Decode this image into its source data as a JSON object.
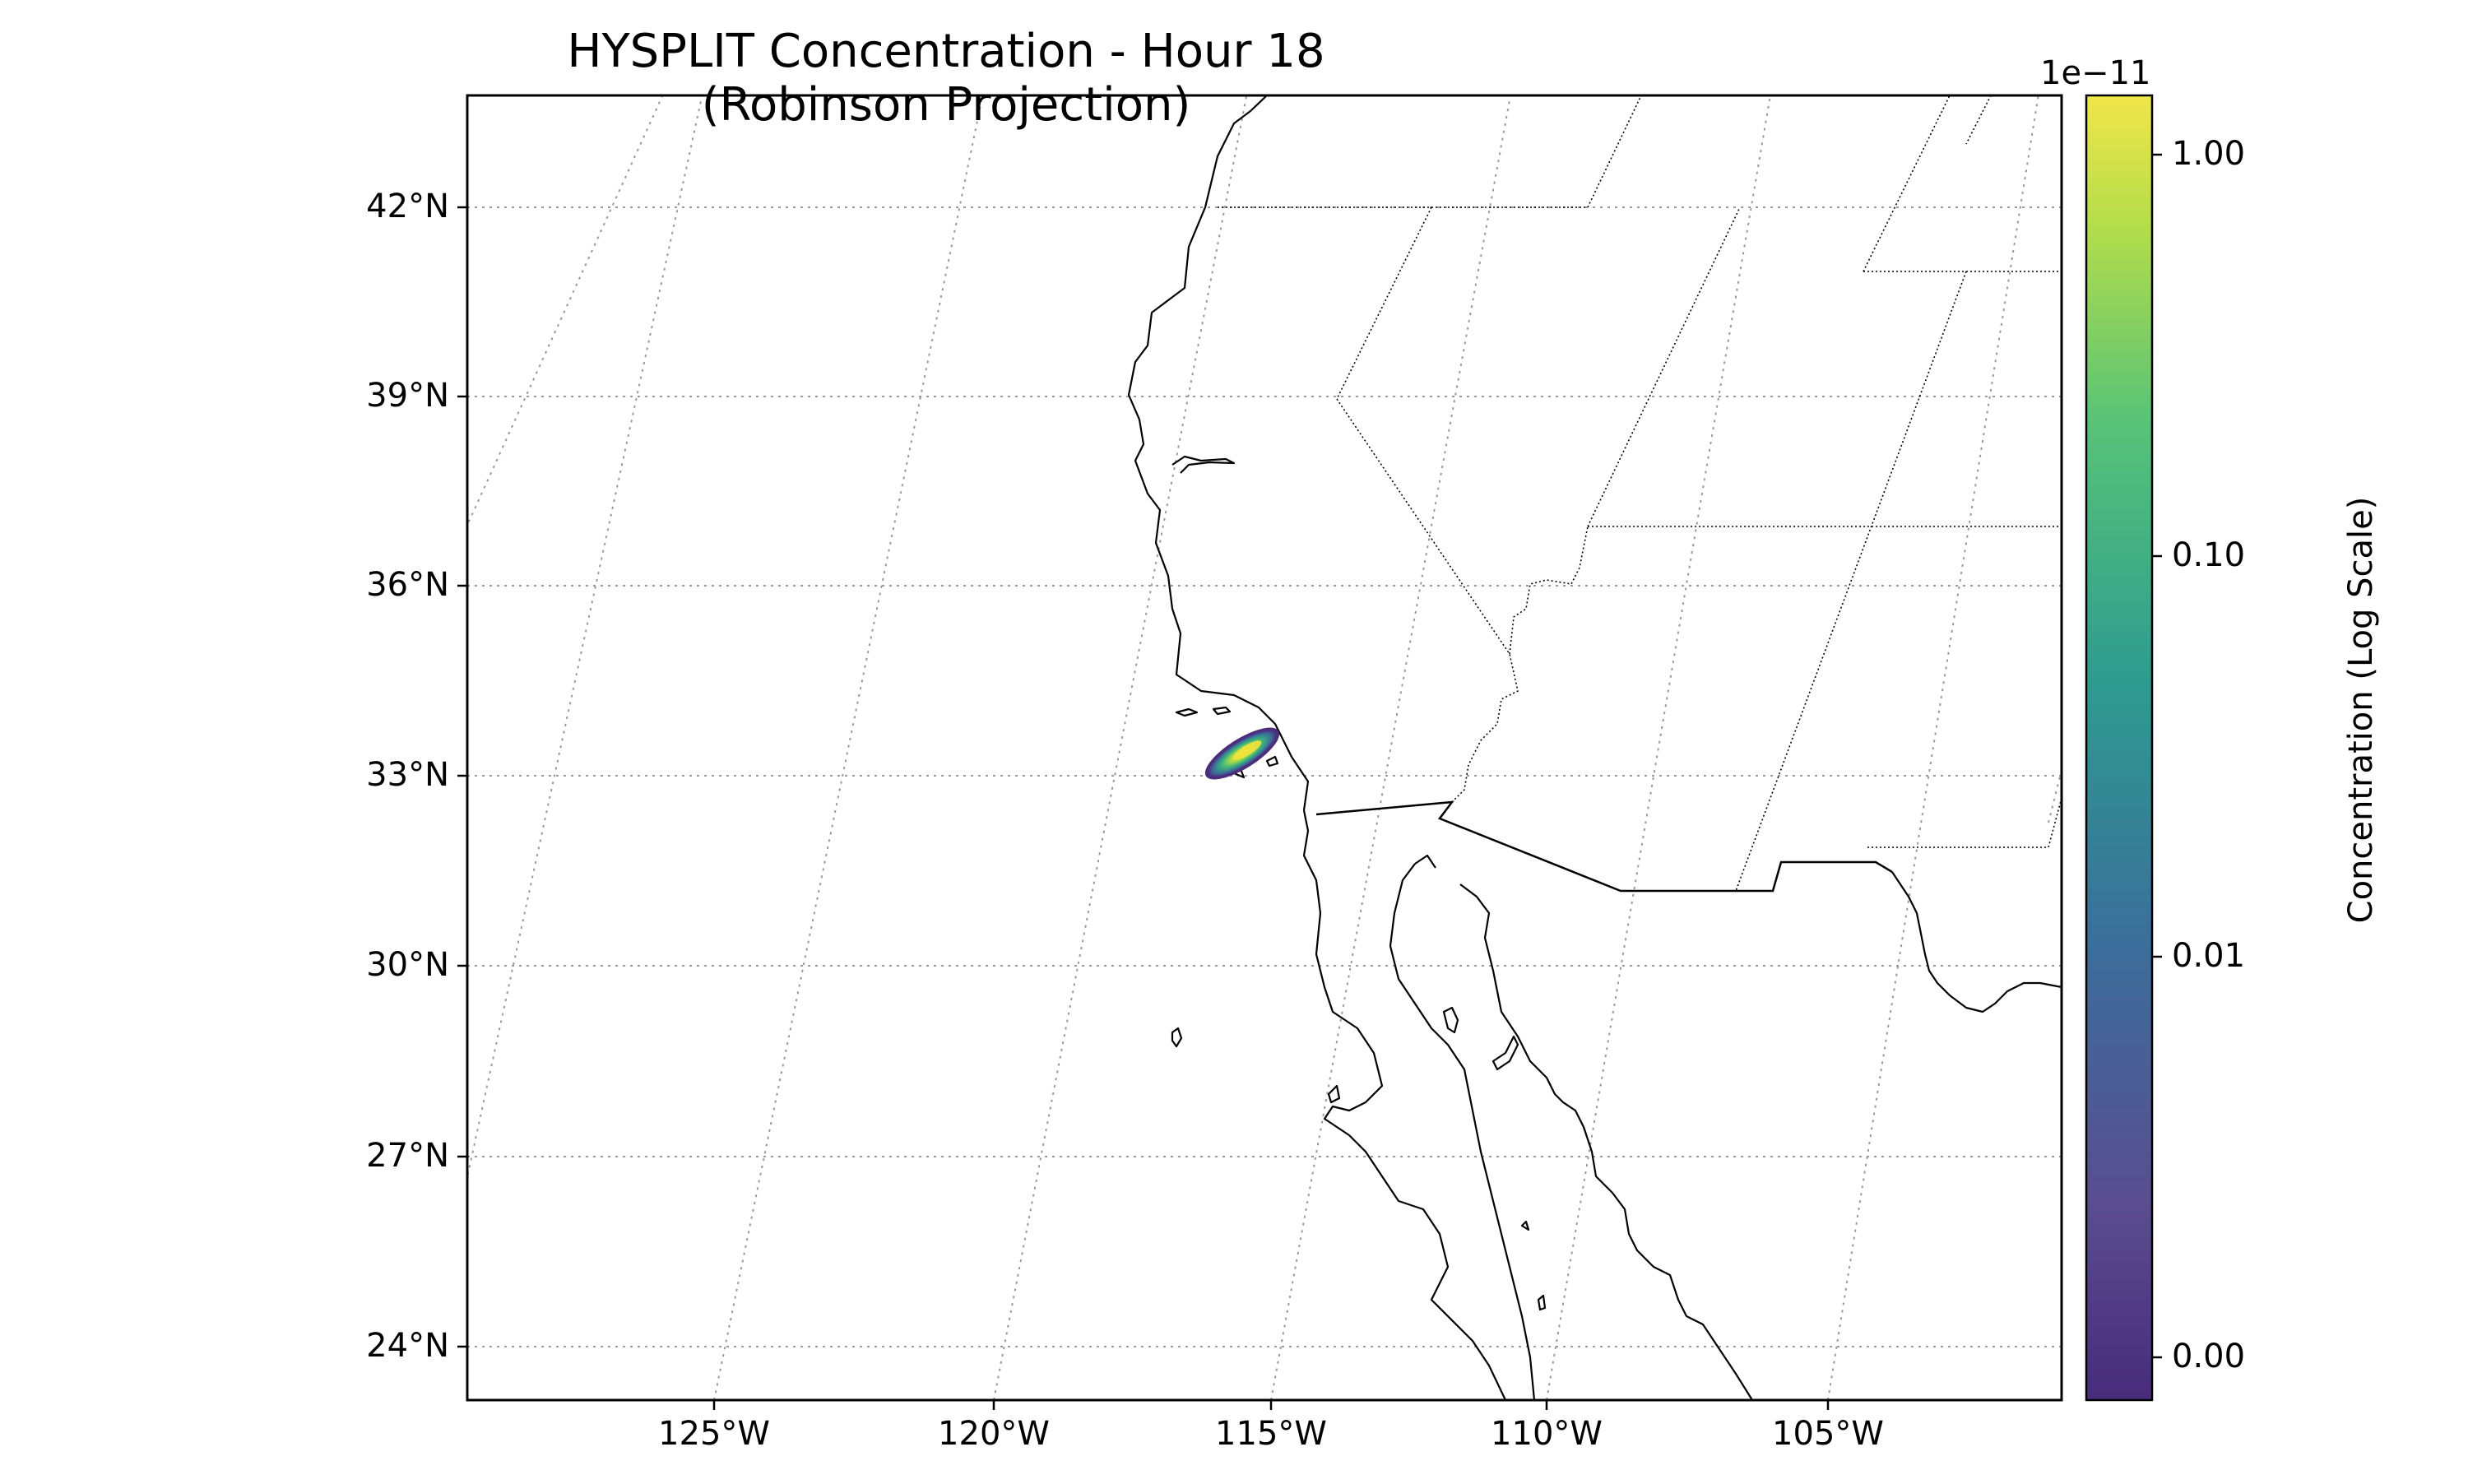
{
  "title": "HYSPLIT Concentration - Hour 18 (Robinson Projection)",
  "map": {
    "projection": "Robinson",
    "extent": {
      "lon_min": -129,
      "lon_max": -100,
      "lat_min": 23,
      "lat_max": 44
    },
    "lat_ticks": [
      {
        "value": 42,
        "label": "42°N"
      },
      {
        "value": 39,
        "label": "39°N"
      },
      {
        "value": 36,
        "label": "36°N"
      },
      {
        "value": 33,
        "label": "33°N"
      },
      {
        "value": 30,
        "label": "30°N"
      },
      {
        "value": 27,
        "label": "27°N"
      },
      {
        "value": 24,
        "label": "24°N"
      }
    ],
    "lon_ticks": [
      {
        "value": -125,
        "label": "125°W"
      },
      {
        "value": -120,
        "label": "120°W"
      },
      {
        "value": -115,
        "label": "115°W"
      },
      {
        "value": -110,
        "label": "110°W"
      },
      {
        "value": -105,
        "label": "105°W"
      }
    ],
    "gridlines": true,
    "features": [
      "coastline",
      "country borders",
      "state borders"
    ],
    "plume": {
      "center_lon": -115.6,
      "center_lat": 33.5,
      "orientation": "southwest-northeast"
    }
  },
  "colorbar": {
    "label": "Concentration (Log Scale)",
    "exponent_label": "1e−11",
    "colormap": "viridis",
    "scale": "log",
    "ticks": [
      "1.00",
      "0.10",
      "0.01",
      "0.00"
    ]
  },
  "colors": {
    "coast": "#000000",
    "grid": "#999999",
    "viridis_low": "#440154",
    "viridis_mid": "#21918c",
    "viridis_high": "#fde725"
  }
}
